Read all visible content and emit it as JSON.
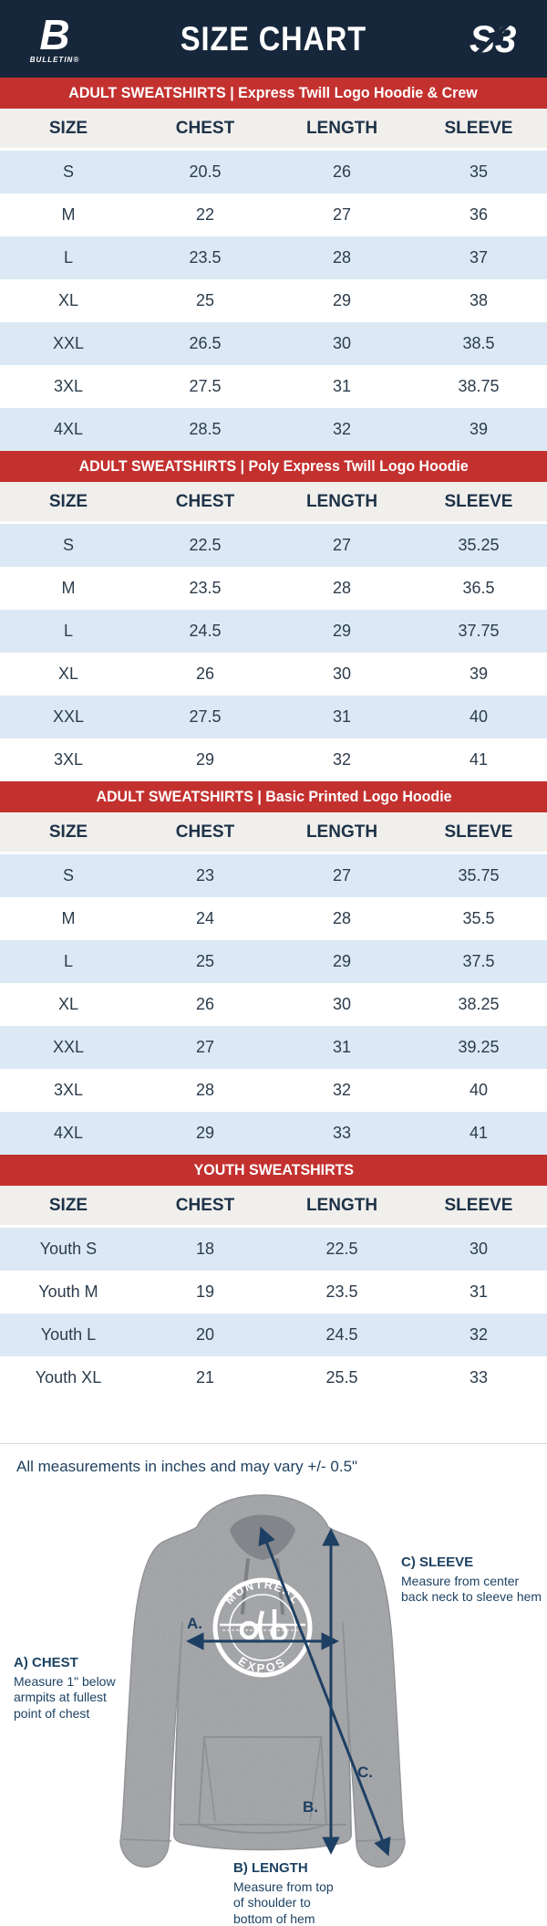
{
  "header": {
    "title": "SIZE CHART",
    "brand_left": "B",
    "brand_left_sub": "BULLETIN®",
    "brand_right": "S3"
  },
  "columns": [
    "SIZE",
    "CHEST",
    "LENGTH",
    "SLEEVE"
  ],
  "tables": [
    {
      "banner": "ADULT SWEATSHIRTS | Express Twill Logo Hoodie & Crew",
      "rows": [
        [
          "S",
          "20.5",
          "26",
          "35"
        ],
        [
          "M",
          "22",
          "27",
          "36"
        ],
        [
          "L",
          "23.5",
          "28",
          "37"
        ],
        [
          "XL",
          "25",
          "29",
          "38"
        ],
        [
          "XXL",
          "26.5",
          "30",
          "38.5"
        ],
        [
          "3XL",
          "27.5",
          "31",
          "38.75"
        ],
        [
          "4XL",
          "28.5",
          "32",
          "39"
        ]
      ]
    },
    {
      "banner": "ADULT SWEATSHIRTS | Poly Express Twill Logo Hoodie",
      "rows": [
        [
          "S",
          "22.5",
          "27",
          "35.25"
        ],
        [
          "M",
          "23.5",
          "28",
          "36.5"
        ],
        [
          "L",
          "24.5",
          "29",
          "37.75"
        ],
        [
          "XL",
          "26",
          "30",
          "39"
        ],
        [
          "XXL",
          "27.5",
          "31",
          "40"
        ],
        [
          "3XL",
          "29",
          "32",
          "41"
        ]
      ]
    },
    {
      "banner": "ADULT SWEATSHIRTS | Basic Printed Logo Hoodie",
      "rows": [
        [
          "S",
          "23",
          "27",
          "35.75"
        ],
        [
          "M",
          "24",
          "28",
          "35.5"
        ],
        [
          "L",
          "25",
          "29",
          "37.5"
        ],
        [
          "XL",
          "26",
          "30",
          "38.25"
        ],
        [
          "XXL",
          "27",
          "31",
          "39.25"
        ],
        [
          "3XL",
          "28",
          "32",
          "40"
        ],
        [
          "4XL",
          "29",
          "33",
          "41"
        ]
      ]
    },
    {
      "banner": "YOUTH SWEATSHIRTS",
      "rows": [
        [
          "Youth S",
          "18",
          "22.5",
          "30"
        ],
        [
          "Youth M",
          "19",
          "23.5",
          "31"
        ],
        [
          "Youth L",
          "20",
          "24.5",
          "32"
        ],
        [
          "Youth XL",
          "21",
          "25.5",
          "33"
        ]
      ]
    }
  ],
  "note": "All measurements in inches and may vary +/- 0.5\"",
  "diagram": {
    "logo_top": "MONTREAL",
    "logo_bottom": "EXPOS",
    "markers": {
      "a": "A.",
      "b": "B.",
      "c": "C."
    },
    "chest": {
      "heading": "A) CHEST",
      "body": "Measure 1\" below armpits at fullest point of chest"
    },
    "length": {
      "heading": "B) LENGTH",
      "body": "Measure from top of shoulder to bottom of hem"
    },
    "sleeve": {
      "heading": "C) SLEEVE",
      "body": "Measure from center back neck to sleeve hem"
    }
  },
  "colors": {
    "header_bg": "#17273b",
    "banner_bg": "#c3312f",
    "row_alt": "#dce9f5",
    "thead_bg": "#f0efec",
    "table_text": "#2c3c4c",
    "annotation": "#1d4263",
    "hoodie_gray": "#9b9da0",
    "arrow": "#1d3f63"
  }
}
